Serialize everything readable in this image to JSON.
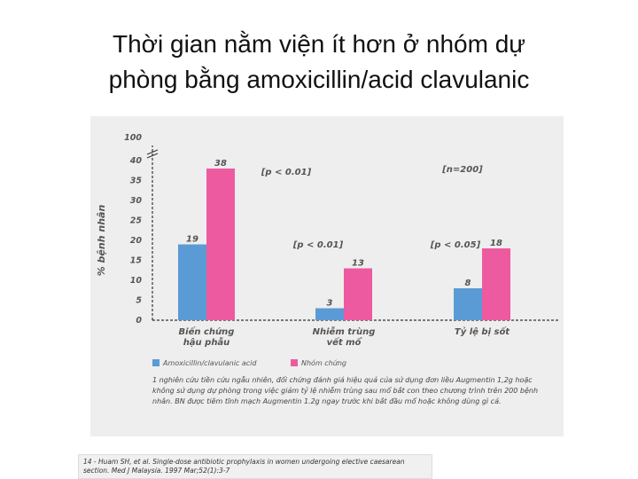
{
  "slide": {
    "title_line1": "Thời gian nằm viện ít hơn ở nhóm dự",
    "title_line2": "phòng bằng amoxicillin/acid clavulanic"
  },
  "chart_data": {
    "type": "bar",
    "categories": [
      [
        "Biến chứng",
        "hậu phẫu"
      ],
      [
        "Nhiễm trùng",
        "vết mổ"
      ],
      [
        "Tỷ lệ bị sốt"
      ]
    ],
    "series": [
      {
        "name": "Amoxicillin/clavulanic acid",
        "color": "#5b9bd5",
        "values": [
          19,
          3,
          8
        ]
      },
      {
        "name": "Nhóm chứng",
        "color": "#ee5aa0",
        "values": [
          38,
          13,
          18
        ]
      }
    ],
    "ylabel": "% bệnh nhân",
    "ylim": [
      0,
      40
    ],
    "yticks": [
      0,
      5,
      10,
      15,
      20,
      25,
      30,
      35,
      40
    ],
    "axis_break_tick": "100",
    "annotations": [
      "[p < 0.01]",
      "[p < 0.01]",
      "[p < 0.05]",
      "[n=200]"
    ],
    "legend_position": "bottom-left",
    "grid": false
  },
  "note": "1 nghiên cứu tiền cứu ngẫu nhiên, đối chứng đánh giá hiệu quả của sử dụng đơn liều Augmentin 1,2g hoặc không sử dụng dự phòng trong việc giảm tỷ lệ nhiễm trùng sau mổ bắt con theo chương trình trên 200 bệnh nhân. BN được tiêm tĩnh mạch Augmentin 1.2g ngay trước khi bắt đầu mổ hoặc không dùng gì cả.",
  "reference": "14 - Huam SH, et al. Single-dose antibiotic prophylaxis in women undergoing elective caesarean section. Med J Malaysia. 1997 Mar;52(1):3-7",
  "colors": {
    "panel_bg": "#eeeeee",
    "axis": "#333333",
    "label": "#555555"
  }
}
